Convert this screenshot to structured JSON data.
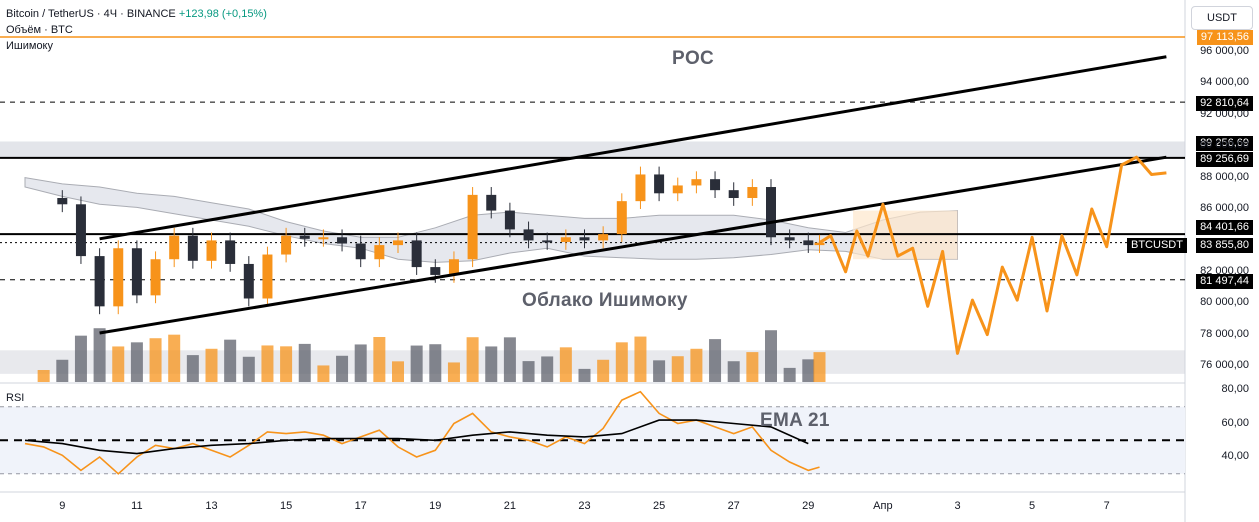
{
  "header": {
    "symbol": "Bitcoin / TetherUS · 4Ч · BINANCE",
    "change": "+123,98 (+0,15%)",
    "volume_label": "Объём · BTC",
    "ichimoku_label": "Ишимоку"
  },
  "currency_button": "USDT",
  "price_labels": {
    "top": "97 113,56",
    "level_92810": "92 810,64",
    "level_89256_a": "89 256,69",
    "level_89256_b": "89 256,69",
    "level_84401": "84 401,66",
    "last_price": "83 855,80",
    "ticker": "BTCUSDT",
    "level_81497": "81 497,44"
  },
  "annotations": {
    "poc": "POC",
    "cloud": "Облако Ишимоку",
    "ema": "EMA 21"
  },
  "rsi_label": "RSI",
  "colors": {
    "up": "#f7931a",
    "down": "#5d606b",
    "forecast": "#f7931a",
    "channel": "#000000",
    "cloud_fill": "#e0e3eb",
    "zone": "#d1d4dc"
  },
  "chart_data": [
    {
      "type": "line",
      "title": "Bitcoin / TetherUS · 4Ч · BINANCE",
      "y_ticks": [
        "96 000,00",
        "94 000,00",
        "92 000,00",
        "90 000,00",
        "88 000,00",
        "86 000,00",
        "82 000,00",
        "80 000,00",
        "78 000,00",
        "76 000,00"
      ],
      "x_ticks": [
        "9",
        "11",
        "13",
        "15",
        "17",
        "19",
        "21",
        "23",
        "25",
        "27",
        "29",
        "Апр",
        "3",
        "5",
        "7"
      ],
      "ylim": [
        75000,
        98000
      ],
      "levels": [
        97113.56,
        92810.64,
        89256.69,
        84401.66,
        81497.44
      ],
      "last_price": 83855.8,
      "close_series": {
        "x": [
          8.5,
          9,
          9.5,
          10,
          10.5,
          11,
          11.5,
          12,
          12.5,
          13,
          13.5,
          14,
          14.5,
          15,
          15.5,
          16,
          16.5,
          17,
          17.5,
          18,
          18.5,
          19,
          19.5,
          20,
          20.5,
          21,
          21.5,
          22,
          22.5,
          23,
          23.5,
          24,
          24.5,
          25,
          25.5,
          26,
          26.5,
          27,
          27.5,
          28,
          28.5,
          29,
          29.3
        ],
        "values": [
          86700,
          86300,
          83000,
          79800,
          83500,
          80500,
          82800,
          84300,
          82700,
          84000,
          82500,
          80300,
          83100,
          84300,
          84100,
          84200,
          83800,
          82800,
          83700,
          84000,
          82300,
          81800,
          82800,
          86900,
          85900,
          84700,
          84000,
          83900,
          84200,
          84000,
          84400,
          86500,
          88200,
          87000,
          87500,
          87900,
          87200,
          86700,
          87400,
          84200,
          84000,
          83700,
          83855
        ]
      },
      "forecast_path": {
        "x": [
          29.3,
          29.6,
          30.0,
          30.3,
          30.6,
          31.0,
          31.4,
          31.8,
          32.2,
          32.6,
          33.0,
          33.4,
          33.8,
          34.2,
          34.6,
          35.0,
          35.4,
          35.8,
          36.2,
          36.6,
          37.0,
          37.4,
          37.8,
          38.2,
          38.6
        ],
        "values": [
          83855,
          84300,
          82000,
          84600,
          83000,
          86300,
          83000,
          83500,
          79800,
          83300,
          76800,
          80200,
          78000,
          82300,
          80200,
          84200,
          79500,
          84300,
          81800,
          86000,
          83600,
          88800,
          89300,
          88200,
          88300
        ]
      },
      "channel_upper": {
        "x": [
          10,
          38.6
        ],
        "values": [
          84100,
          95700
        ]
      },
      "channel_lower": {
        "x": [
          10,
          38.6
        ],
        "values": [
          78100,
          89300
        ]
      }
    },
    {
      "type": "line",
      "title": "RSI",
      "y_ticks": [
        "80,00",
        "60,00",
        "40,00"
      ],
      "ylim": [
        25,
        82
      ],
      "bands": [
        30,
        70
      ],
      "midline": 50,
      "series": [
        {
          "values_x": [
            8,
            8.5,
            9,
            9.5,
            10,
            10.5,
            11,
            11.5,
            12,
            12.5,
            13,
            13.5,
            14,
            14.5,
            15,
            15.5,
            16,
            16.5,
            17,
            17.5,
            18,
            18.5,
            19,
            19.5,
            20,
            20.5,
            21,
            21.5,
            22,
            22.5,
            23,
            23.5,
            24,
            24.5,
            25,
            25.5,
            26,
            26.5,
            27,
            27.5,
            28,
            28.5,
            29,
            29.3
          ],
          "values": [
            48,
            46,
            41,
            32,
            40,
            30,
            40,
            47,
            45,
            48,
            44,
            40,
            47,
            55,
            54,
            55,
            53,
            48,
            52,
            56,
            46,
            40,
            44,
            60,
            66,
            55,
            52,
            50,
            46,
            52,
            48,
            57,
            74,
            79,
            66,
            60,
            62,
            58,
            54,
            58,
            44,
            37,
            32,
            34
          ]
        },
        {
          "name": "EMA 21",
          "values_x": [
            8,
            9,
            10,
            11,
            12,
            13,
            14,
            15,
            16,
            17,
            18,
            19,
            20,
            21,
            22,
            23,
            24,
            25,
            26,
            27,
            28,
            29
          ],
          "values": [
            50,
            48,
            44,
            42,
            45,
            47,
            48,
            50,
            51,
            51,
            51,
            50,
            53,
            55,
            53,
            52,
            54,
            62,
            62,
            60,
            58,
            48
          ]
        }
      ]
    }
  ]
}
